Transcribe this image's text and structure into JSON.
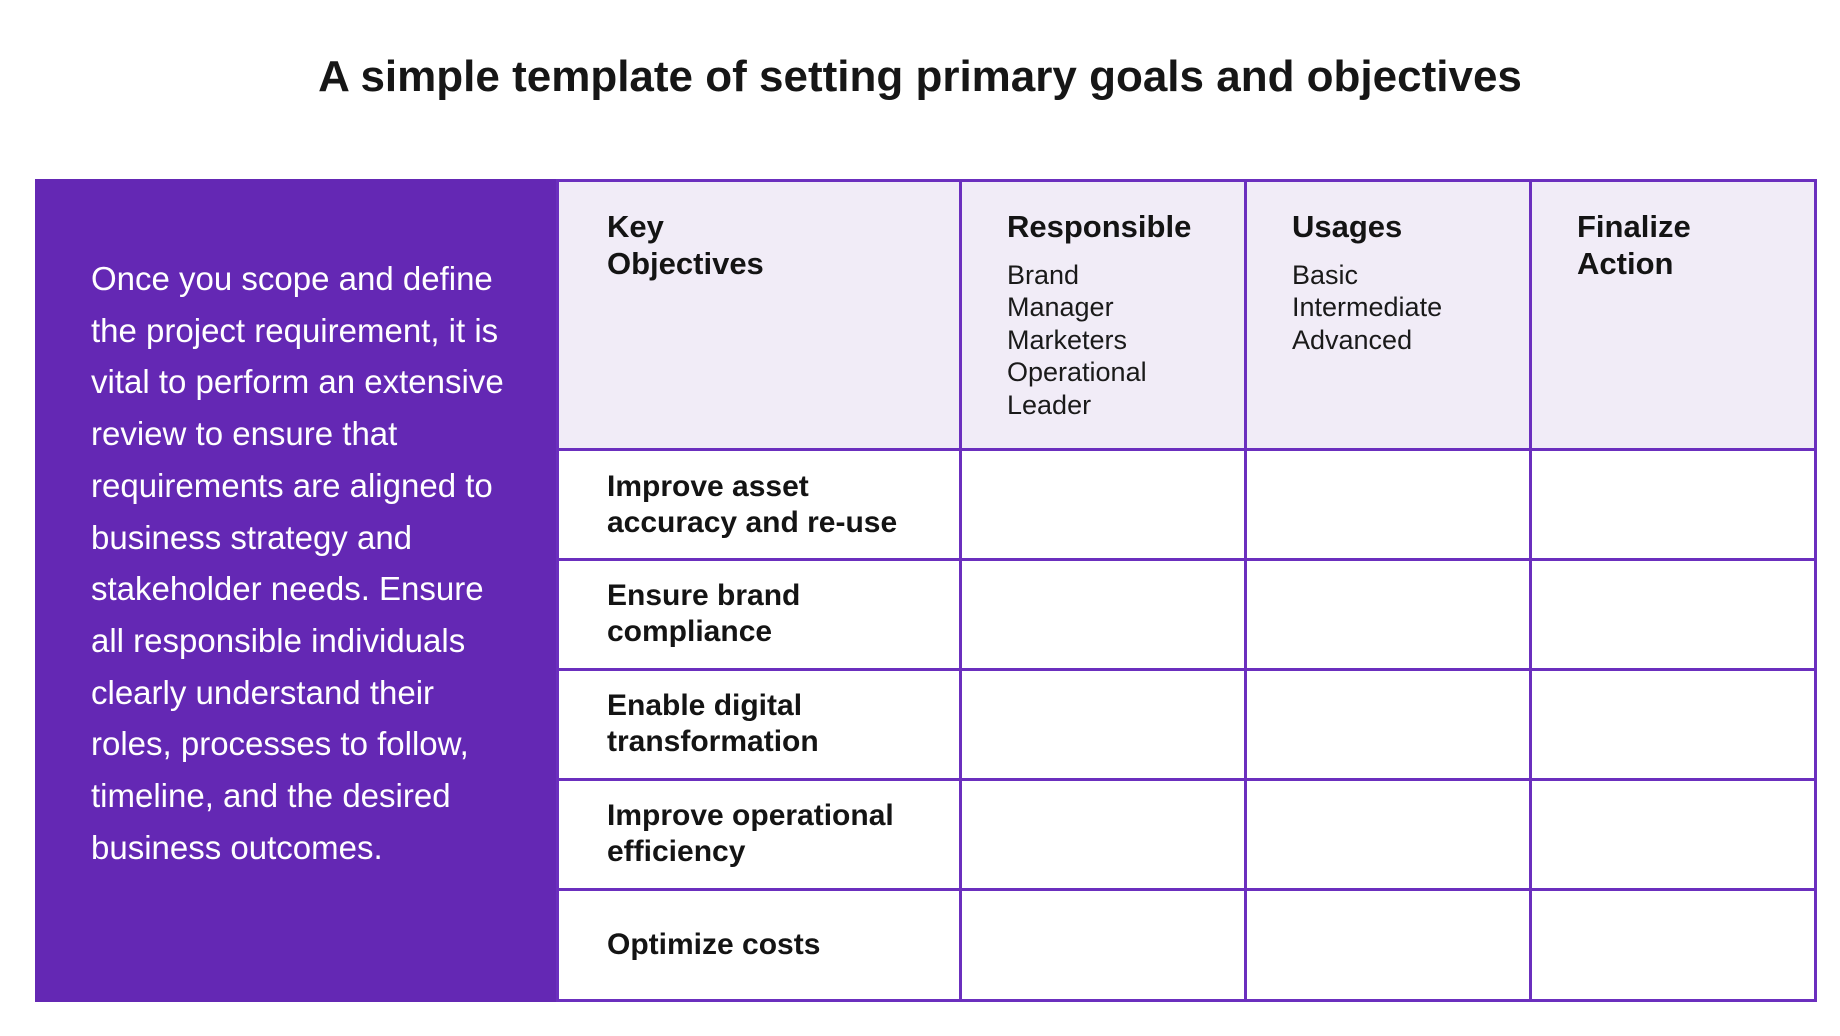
{
  "title": "A simple template of setting primary goals and objectives",
  "intro": {
    "text": "Once you scope and define the project requirement, it is vital to perform an extensive review to ensure that requirements are aligned to business strategy and stakeholder needs. Ensure all responsible individuals clearly understand their roles, processes to follow, timeline, and the desired business outcomes."
  },
  "table": {
    "headers": {
      "key_objectives": "Key Objectives",
      "responsible": {
        "label": "Responsible",
        "options": [
          "Brand Manager",
          "Marketers",
          "Operational Leader"
        ]
      },
      "usages": {
        "label": "Usages",
        "options": [
          "Basic",
          "Intermediate",
          "Advanced"
        ]
      },
      "finalize_action": "Finalize Action"
    },
    "rows": [
      {
        "objective": "Improve asset accuracy and re-use",
        "responsible": "",
        "usages": "",
        "finalize_action": ""
      },
      {
        "objective": "Ensure brand compliance",
        "responsible": "",
        "usages": "",
        "finalize_action": ""
      },
      {
        "objective": "Enable digital transformation",
        "responsible": "",
        "usages": "",
        "finalize_action": ""
      },
      {
        "objective": "Improve operational efficiency",
        "responsible": "",
        "usages": "",
        "finalize_action": ""
      },
      {
        "objective": "Optimize costs",
        "responsible": "",
        "usages": "",
        "finalize_action": ""
      }
    ]
  },
  "colors": {
    "accent_purple": "#6428b4",
    "border_purple": "#6b2fbe",
    "header_fill": "#f1ecf7"
  }
}
